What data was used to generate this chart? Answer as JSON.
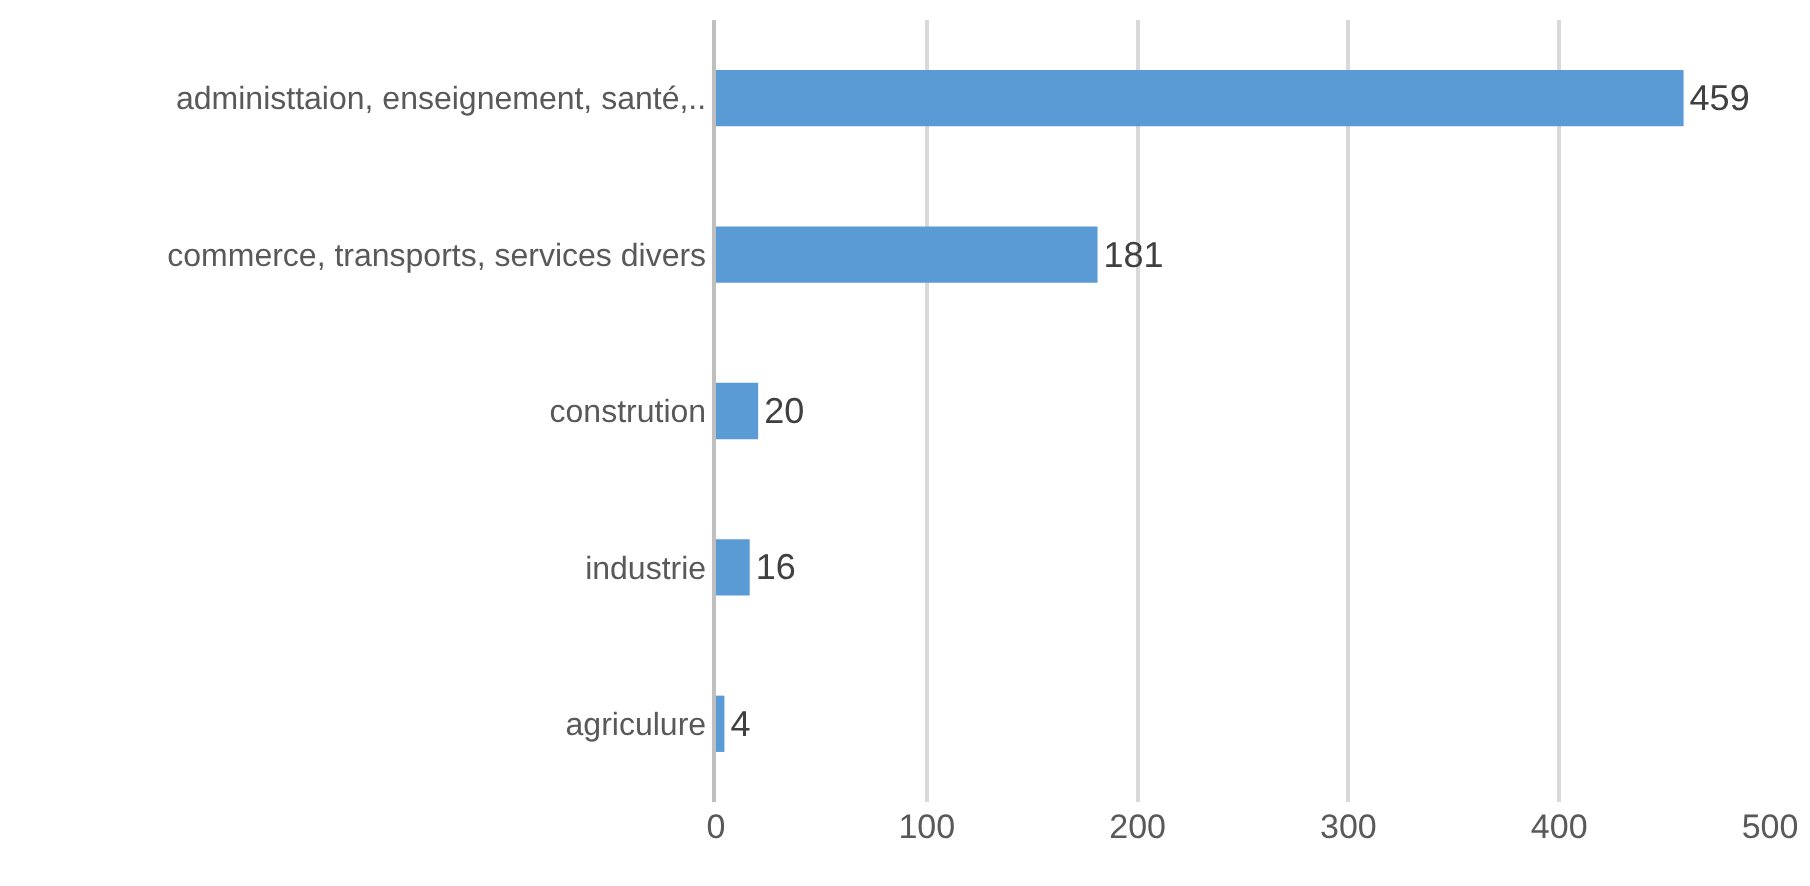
{
  "chart_data": {
    "type": "bar",
    "orientation": "horizontal",
    "categories": [
      "administtaion, enseignement, santé,..",
      "commerce, transports, services divers",
      "constrution",
      "industrie",
      "agriculure"
    ],
    "values": [
      459,
      181,
      20,
      16,
      4
    ],
    "color": "#5b9bd5",
    "xlim": [
      0,
      500
    ],
    "xticks": [
      0,
      100,
      200,
      300,
      400,
      500
    ],
    "grid": "x",
    "data_labels": true,
    "legend": false
  }
}
